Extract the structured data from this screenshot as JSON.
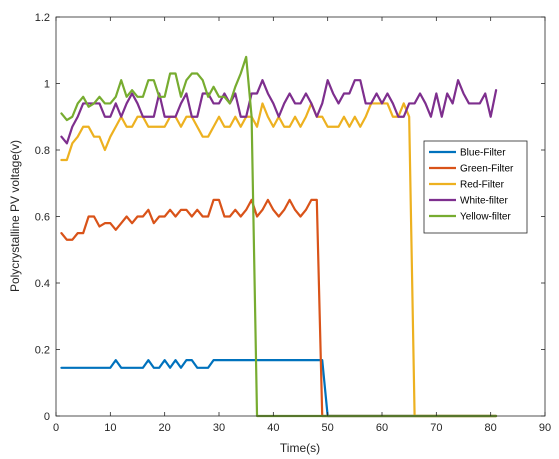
{
  "chart_data": {
    "type": "line",
    "title": "",
    "xlabel": "Time(s)",
    "ylabel": "Polycrystalline PV voltage(v)",
    "xlim": [
      0,
      90
    ],
    "ylim": [
      0,
      1.2
    ],
    "xticks": [
      0,
      10,
      20,
      30,
      40,
      50,
      60,
      70,
      80,
      90
    ],
    "yticks": [
      0,
      0.2,
      0.4,
      0.6,
      0.8,
      1,
      1.2
    ],
    "x_tick_labels": [
      "0",
      "10",
      "20",
      "30",
      "40",
      "50",
      "60",
      "70",
      "80",
      "90"
    ],
    "y_tick_labels": [
      "0",
      "0.2",
      "0.4",
      "0.6",
      "0.8",
      "1",
      "1.2"
    ],
    "grid": false,
    "legend_position": "right",
    "series": [
      {
        "name": "Blue-Filter",
        "color": "#0072BD",
        "x": [
          1,
          2,
          3,
          4,
          5,
          6,
          7,
          8,
          9,
          10,
          11,
          12,
          13,
          14,
          15,
          16,
          17,
          18,
          19,
          20,
          21,
          22,
          23,
          24,
          25,
          26,
          27,
          28,
          29,
          30,
          31,
          32,
          33,
          34,
          35,
          36,
          37,
          38,
          39,
          40,
          41,
          42,
          43,
          44,
          45,
          46,
          47,
          48,
          49,
          50,
          51,
          52,
          53,
          54,
          55,
          56,
          57,
          58,
          59,
          60,
          61,
          62,
          63,
          64,
          65,
          66,
          67,
          68,
          69,
          70,
          71,
          72,
          73,
          74,
          75,
          76,
          77,
          78,
          79,
          80,
          81
        ],
        "y": [
          0.145,
          0.145,
          0.145,
          0.145,
          0.145,
          0.145,
          0.145,
          0.145,
          0.145,
          0.145,
          0.168,
          0.145,
          0.145,
          0.145,
          0.145,
          0.145,
          0.168,
          0.145,
          0.145,
          0.168,
          0.145,
          0.168,
          0.145,
          0.168,
          0.168,
          0.145,
          0.145,
          0.145,
          0.168,
          0.168,
          0.168,
          0.168,
          0.168,
          0.168,
          0.168,
          0.168,
          0.168,
          0.168,
          0.168,
          0.168,
          0.168,
          0.168,
          0.168,
          0.168,
          0.168,
          0.168,
          0.168,
          0.168,
          0.168,
          0,
          0,
          0,
          0,
          0,
          0,
          0,
          0,
          0,
          0,
          0,
          0,
          0,
          0,
          0,
          0,
          0,
          0,
          0,
          0,
          0,
          0,
          0,
          0,
          0,
          0,
          0,
          0,
          0,
          0,
          0,
          0
        ]
      },
      {
        "name": "Green-Filter",
        "color": "#D95319",
        "x": [
          1,
          2,
          3,
          4,
          5,
          6,
          7,
          8,
          9,
          10,
          11,
          12,
          13,
          14,
          15,
          16,
          17,
          18,
          19,
          20,
          21,
          22,
          23,
          24,
          25,
          26,
          27,
          28,
          29,
          30,
          31,
          32,
          33,
          34,
          35,
          36,
          37,
          38,
          39,
          40,
          41,
          42,
          43,
          44,
          45,
          46,
          47,
          48,
          49,
          50,
          51,
          52,
          53,
          54,
          55,
          56,
          57,
          58,
          59,
          60,
          61,
          62,
          63,
          64,
          65,
          66,
          67,
          68,
          69,
          70,
          71,
          72,
          73,
          74,
          75,
          76,
          77,
          78,
          79,
          80,
          81
        ],
        "y": [
          0.55,
          0.53,
          0.53,
          0.55,
          0.55,
          0.6,
          0.6,
          0.57,
          0.58,
          0.58,
          0.56,
          0.58,
          0.6,
          0.58,
          0.6,
          0.6,
          0.62,
          0.58,
          0.6,
          0.6,
          0.62,
          0.6,
          0.62,
          0.62,
          0.6,
          0.62,
          0.6,
          0.6,
          0.65,
          0.65,
          0.6,
          0.6,
          0.62,
          0.6,
          0.62,
          0.65,
          0.6,
          0.62,
          0.65,
          0.62,
          0.6,
          0.62,
          0.65,
          0.62,
          0.6,
          0.62,
          0.65,
          0.65,
          0,
          0,
          0,
          0,
          0,
          0,
          0,
          0,
          0,
          0,
          0,
          0,
          0,
          0,
          0,
          0,
          0,
          0,
          0,
          0,
          0,
          0,
          0,
          0,
          0,
          0,
          0,
          0,
          0,
          0,
          0,
          0,
          0
        ]
      },
      {
        "name": "Red-Filter",
        "color": "#EDB120",
        "x": [
          1,
          2,
          3,
          4,
          5,
          6,
          7,
          8,
          9,
          10,
          11,
          12,
          13,
          14,
          15,
          16,
          17,
          18,
          19,
          20,
          21,
          22,
          23,
          24,
          25,
          26,
          27,
          28,
          29,
          30,
          31,
          32,
          33,
          34,
          35,
          36,
          37,
          38,
          39,
          40,
          41,
          42,
          43,
          44,
          45,
          46,
          47,
          48,
          49,
          50,
          51,
          52,
          53,
          54,
          55,
          56,
          57,
          58,
          59,
          60,
          61,
          62,
          63,
          64,
          65,
          66,
          67,
          68,
          69,
          70,
          71,
          72,
          73,
          74,
          75,
          76,
          77,
          78,
          79,
          80,
          81
        ],
        "y": [
          0.77,
          0.77,
          0.82,
          0.84,
          0.87,
          0.87,
          0.84,
          0.84,
          0.8,
          0.84,
          0.87,
          0.9,
          0.87,
          0.87,
          0.9,
          0.9,
          0.87,
          0.87,
          0.87,
          0.87,
          0.9,
          0.9,
          0.87,
          0.9,
          0.9,
          0.87,
          0.84,
          0.84,
          0.87,
          0.9,
          0.87,
          0.87,
          0.9,
          0.87,
          0.9,
          0.9,
          0.87,
          0.94,
          0.9,
          0.87,
          0.9,
          0.87,
          0.87,
          0.9,
          0.87,
          0.9,
          0.94,
          0.9,
          0.9,
          0.87,
          0.87,
          0.87,
          0.9,
          0.87,
          0.9,
          0.87,
          0.9,
          0.94,
          0.94,
          0.94,
          0.94,
          0.9,
          0.9,
          0.94,
          0.9,
          0,
          0,
          0,
          0,
          0,
          0,
          0,
          0,
          0,
          0,
          0,
          0,
          0,
          0,
          0,
          0
        ]
      },
      {
        "name": "White-filter",
        "color": "#7E2F8E",
        "x": [
          1,
          2,
          3,
          4,
          5,
          6,
          7,
          8,
          9,
          10,
          11,
          12,
          13,
          14,
          15,
          16,
          17,
          18,
          19,
          20,
          21,
          22,
          23,
          24,
          25,
          26,
          27,
          28,
          29,
          30,
          31,
          32,
          33,
          34,
          35,
          36,
          37,
          38,
          39,
          40,
          41,
          42,
          43,
          44,
          45,
          46,
          47,
          48,
          49,
          50,
          51,
          52,
          53,
          54,
          55,
          56,
          57,
          58,
          59,
          60,
          61,
          62,
          63,
          64,
          65,
          66,
          67,
          68,
          69,
          70,
          71,
          72,
          73,
          74,
          75,
          76,
          77,
          78,
          79,
          80,
          81
        ],
        "y": [
          0.84,
          0.82,
          0.87,
          0.9,
          0.94,
          0.94,
          0.94,
          0.94,
          0.9,
          0.9,
          0.94,
          0.9,
          0.94,
          0.97,
          0.94,
          0.9,
          0.9,
          0.9,
          0.97,
          0.9,
          0.9,
          0.9,
          0.94,
          0.97,
          0.9,
          0.9,
          0.97,
          0.97,
          0.94,
          0.94,
          0.97,
          0.94,
          0.97,
          0.9,
          0.9,
          0.97,
          0.97,
          1.01,
          0.97,
          0.94,
          0.9,
          0.94,
          0.97,
          0.94,
          0.94,
          0.97,
          0.94,
          0.9,
          0.94,
          1.01,
          0.97,
          0.94,
          0.97,
          0.97,
          1.01,
          1.01,
          0.94,
          0.94,
          0.97,
          0.94,
          0.97,
          0.94,
          0.9,
          0.9,
          0.94,
          0.94,
          0.97,
          0.94,
          0.9,
          0.97,
          0.9,
          0.97,
          0.94,
          1.01,
          0.97,
          0.94,
          0.94,
          0.94,
          0.97,
          0.9,
          0.98
        ]
      },
      {
        "name": "Yellow-filter",
        "color": "#77AC30",
        "x": [
          1,
          2,
          3,
          4,
          5,
          6,
          7,
          8,
          9,
          10,
          11,
          12,
          13,
          14,
          15,
          16,
          17,
          18,
          19,
          20,
          21,
          22,
          23,
          24,
          25,
          26,
          27,
          28,
          29,
          30,
          31,
          32,
          33,
          34,
          35,
          36,
          37,
          38,
          39,
          40,
          41,
          42,
          43,
          44,
          45,
          46,
          47,
          48,
          49,
          50,
          51,
          52,
          53,
          54,
          55,
          56,
          57,
          58,
          59,
          60,
          61,
          62,
          63,
          64,
          65,
          66,
          67,
          68,
          69,
          70,
          71,
          72,
          73,
          74,
          75,
          76,
          77,
          78,
          79,
          80,
          81
        ],
        "y": [
          0.91,
          0.89,
          0.9,
          0.94,
          0.96,
          0.93,
          0.94,
          0.96,
          0.94,
          0.94,
          0.96,
          1.01,
          0.96,
          0.98,
          0.96,
          0.96,
          1.01,
          1.01,
          0.96,
          0.96,
          1.03,
          1.03,
          0.96,
          1.01,
          1.03,
          1.03,
          1.01,
          0.96,
          0.99,
          0.96,
          0.96,
          0.94,
          0.99,
          1.03,
          1.08,
          0.9,
          0,
          0,
          0,
          0,
          0,
          0,
          0,
          0,
          0,
          0,
          0,
          0,
          0,
          0,
          0,
          0,
          0,
          0,
          0,
          0,
          0,
          0,
          0,
          0,
          0,
          0,
          0,
          0,
          0,
          0,
          0,
          0,
          0,
          0,
          0,
          0,
          0,
          0,
          0,
          0,
          0,
          0,
          0,
          0,
          0
        ]
      }
    ]
  }
}
